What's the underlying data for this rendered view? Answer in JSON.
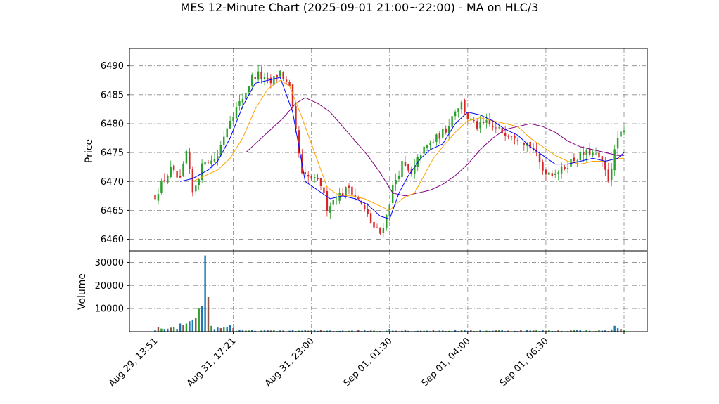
{
  "chart_data": {
    "type": "candlestick",
    "title": "MES 12-Minute Chart (2025-09-01 21:00~22:00) - MA on HLC/3",
    "price_panel": {
      "ylabel": "Price",
      "ylim": [
        6458,
        6493
      ],
      "yticks": [
        6460,
        6465,
        6470,
        6475,
        6480,
        6485,
        6490
      ],
      "grid": true
    },
    "volume_panel": {
      "ylabel": "Volume",
      "ylim": [
        0,
        35000
      ],
      "yticks": [
        10000,
        20000,
        30000
      ],
      "tick_labels": [
        "10000",
        "20000",
        "30000"
      ],
      "grid": true
    },
    "xaxis": {
      "tick_labels": [
        "Aug 29, 13:51",
        "Aug 31, 17:21",
        "Aug 31, 23:00",
        "Sep 01, 01:30",
        "Sep 01, 04:00",
        "Sep 01, 06:30"
      ],
      "tick_positions": [
        0,
        25,
        50,
        75,
        100,
        125
      ]
    },
    "colors": {
      "up": "#2ca02c",
      "down": "#d62728",
      "ma_fast": "#0000ff",
      "ma_mid": "#ffa500",
      "ma_slow": "#800080",
      "vol_a": "#1f77b4",
      "vol_b": "#8c564b",
      "vol_c": "#2ca02c",
      "grid": "#888888"
    },
    "close_anchors": [
      [
        0,
        6467.5
      ],
      [
        2,
        6469.5
      ],
      [
        5,
        6472
      ],
      [
        8,
        6470
      ],
      [
        10,
        6475
      ],
      [
        12,
        6468
      ],
      [
        14,
        6471
      ],
      [
        16,
        6474
      ],
      [
        18,
        6473.5
      ],
      [
        20,
        6474.5
      ],
      [
        22,
        6478
      ],
      [
        24,
        6481
      ],
      [
        27,
        6483.5
      ],
      [
        29,
        6485.5
      ],
      [
        31,
        6488
      ],
      [
        33,
        6488.5
      ],
      [
        35,
        6487.5
      ],
      [
        37,
        6487
      ],
      [
        39,
        6488.5
      ],
      [
        40,
        6489
      ],
      [
        43,
        6486
      ],
      [
        47,
        6471
      ],
      [
        50,
        6470.5
      ],
      [
        53,
        6469.5
      ],
      [
        55,
        6465.5
      ],
      [
        58,
        6467.5
      ],
      [
        60,
        6468
      ],
      [
        62,
        6469
      ],
      [
        66,
        6466
      ],
      [
        70,
        6462
      ],
      [
        72,
        6461
      ],
      [
        74,
        6464
      ],
      [
        76,
        6469
      ],
      [
        79,
        6473
      ],
      [
        82,
        6471
      ],
      [
        85,
        6475
      ],
      [
        88,
        6476.5
      ],
      [
        91,
        6478
      ],
      [
        93,
        6479
      ],
      [
        96,
        6482.5
      ],
      [
        98,
        6483.5
      ],
      [
        100,
        6481
      ],
      [
        103,
        6479.5
      ],
      [
        106,
        6480
      ],
      [
        109,
        6479
      ],
      [
        112,
        6478.5
      ],
      [
        115,
        6478
      ],
      [
        118,
        6477
      ],
      [
        121,
        6475.5
      ],
      [
        124,
        6472
      ],
      [
        127,
        6471.5
      ],
      [
        130,
        6472
      ],
      [
        133,
        6473.5
      ],
      [
        136,
        6474.5
      ],
      [
        139,
        6475
      ],
      [
        142,
        6474
      ],
      [
        145,
        6470.5
      ],
      [
        147,
        6475
      ],
      [
        148,
        6477.5
      ],
      [
        150,
        6478.5
      ]
    ],
    "ma_fast_points": [
      [
        8,
        6470
      ],
      [
        12,
        6470.5
      ],
      [
        17,
        6472
      ],
      [
        20,
        6473.5
      ],
      [
        24,
        6477.5
      ],
      [
        28,
        6483
      ],
      [
        32,
        6487
      ],
      [
        36,
        6487.5
      ],
      [
        40,
        6488
      ],
      [
        44,
        6482
      ],
      [
        48,
        6470
      ],
      [
        52,
        6468.5
      ],
      [
        56,
        6467
      ],
      [
        60,
        6467.5
      ],
      [
        64,
        6467
      ],
      [
        68,
        6466
      ],
      [
        72,
        6464
      ],
      [
        75,
        6463.5
      ],
      [
        78,
        6468
      ],
      [
        81,
        6471
      ],
      [
        85,
        6474
      ],
      [
        88,
        6475.5
      ],
      [
        92,
        6476.5
      ],
      [
        96,
        6480
      ],
      [
        100,
        6482
      ],
      [
        104,
        6481.5
      ],
      [
        108,
        6480.5
      ],
      [
        112,
        6479
      ],
      [
        116,
        6478
      ],
      [
        120,
        6476
      ],
      [
        124,
        6474.5
      ],
      [
        128,
        6473
      ],
      [
        132,
        6473
      ],
      [
        136,
        6473.5
      ],
      [
        140,
        6474
      ],
      [
        144,
        6473.5
      ],
      [
        148,
        6474
      ],
      [
        150,
        6475
      ]
    ],
    "ma_mid_points": [
      [
        12,
        6470
      ],
      [
        16,
        6471
      ],
      [
        20,
        6472
      ],
      [
        24,
        6474
      ],
      [
        28,
        6477.5
      ],
      [
        32,
        6482.5
      ],
      [
        36,
        6486
      ],
      [
        40,
        6487.5
      ],
      [
        43,
        6486.5
      ],
      [
        47,
        6481
      ],
      [
        51,
        6475
      ],
      [
        55,
        6469
      ],
      [
        59,
        6467.5
      ],
      [
        63,
        6467.5
      ],
      [
        67,
        6467
      ],
      [
        71,
        6466
      ],
      [
        75,
        6465
      ],
      [
        79,
        6467
      ],
      [
        83,
        6468
      ],
      [
        86,
        6471
      ],
      [
        89,
        6474
      ],
      [
        92,
        6476
      ],
      [
        96,
        6478.5
      ],
      [
        100,
        6480.5
      ],
      [
        104,
        6481
      ],
      [
        108,
        6480.5
      ],
      [
        112,
        6480
      ],
      [
        116,
        6479.5
      ],
      [
        120,
        6477.5
      ],
      [
        124,
        6476
      ],
      [
        128,
        6474.5
      ],
      [
        132,
        6473.5
      ],
      [
        136,
        6473
      ],
      [
        140,
        6473.5
      ],
      [
        144,
        6473.5
      ],
      [
        148,
        6474
      ],
      [
        150,
        6474
      ]
    ],
    "ma_slow_points": [
      [
        29,
        6475
      ],
      [
        33,
        6477
      ],
      [
        37,
        6479
      ],
      [
        41,
        6481
      ],
      [
        45,
        6483.5
      ],
      [
        48,
        6484.5
      ],
      [
        52,
        6483.5
      ],
      [
        56,
        6482
      ],
      [
        60,
        6479.5
      ],
      [
        64,
        6477
      ],
      [
        68,
        6474.5
      ],
      [
        72,
        6471.5
      ],
      [
        76,
        6468
      ],
      [
        80,
        6467.5
      ],
      [
        84,
        6468
      ],
      [
        88,
        6468.5
      ],
      [
        92,
        6469.5
      ],
      [
        96,
        6471
      ],
      [
        100,
        6473
      ],
      [
        104,
        6475.5
      ],
      [
        108,
        6477.5
      ],
      [
        112,
        6479
      ],
      [
        116,
        6479.5
      ],
      [
        120,
        6480
      ],
      [
        124,
        6479.5
      ],
      [
        128,
        6478.5
      ],
      [
        132,
        6477
      ],
      [
        136,
        6476
      ],
      [
        140,
        6475.5
      ],
      [
        144,
        6475
      ],
      [
        148,
        6474.5
      ],
      [
        150,
        6474.5
      ]
    ],
    "volume_spikes": [
      [
        8,
        3500
      ],
      [
        9,
        3000
      ],
      [
        10,
        3500
      ],
      [
        11,
        4500
      ],
      [
        12,
        5200
      ],
      [
        13,
        6000
      ],
      [
        14,
        10000
      ],
      [
        15,
        11000
      ],
      [
        16,
        33000
      ],
      [
        17,
        15000
      ],
      [
        18,
        2500
      ],
      [
        21,
        1500
      ],
      [
        22,
        1800
      ],
      [
        23,
        2000
      ],
      [
        24,
        2800
      ],
      [
        25,
        1500
      ],
      [
        75,
        1200
      ],
      [
        135,
        700
      ],
      [
        146,
        1000
      ],
      [
        147,
        2500
      ],
      [
        148,
        1500
      ],
      [
        149,
        1200
      ],
      [
        150,
        900
      ]
    ]
  }
}
